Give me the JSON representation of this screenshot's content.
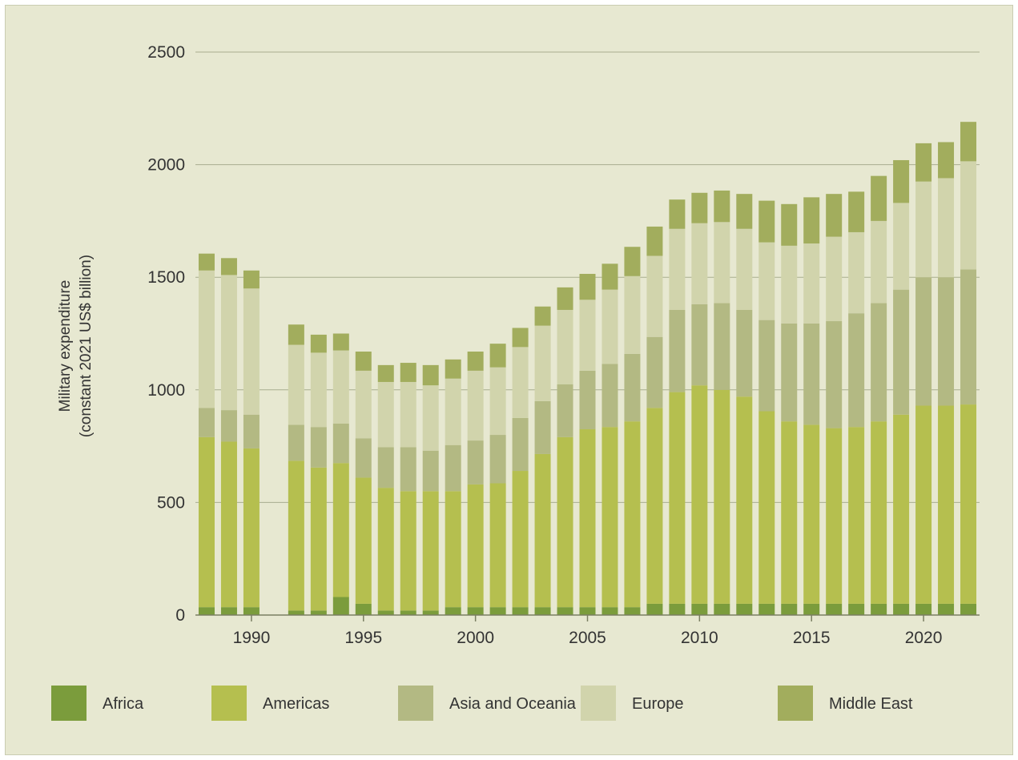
{
  "chart_data": {
    "type": "bar",
    "stacked": true,
    "title": "",
    "xlabel": "",
    "ylabel": "Military expenditure",
    "ylabel_unit": "(constant 2021 US$ billion)",
    "ylim": [
      0,
      2500
    ],
    "yticks": [
      0,
      500,
      1000,
      1500,
      2000,
      2500
    ],
    "ytick_labels": [
      "0",
      "500",
      "1000",
      "1500",
      "2000",
      "2500"
    ],
    "xlim": [
      1987.5,
      2022.5
    ],
    "xticks": [
      1990,
      1995,
      2000,
      2005,
      2010,
      2015,
      2020
    ],
    "xtick_labels": [
      "1990",
      "1995",
      "2000",
      "2005",
      "2010",
      "2015",
      "2020"
    ],
    "grid": true,
    "legend_position": "bottom",
    "categories": [
      1988,
      1989,
      1990,
      1992,
      1993,
      1994,
      1995,
      1996,
      1997,
      1998,
      1999,
      2000,
      2001,
      2002,
      2003,
      2004,
      2005,
      2006,
      2007,
      2008,
      2009,
      2010,
      2011,
      2012,
      2013,
      2014,
      2015,
      2016,
      2017,
      2018,
      2019,
      2020,
      2021,
      2022
    ],
    "series": [
      {
        "name": "Africa",
        "color": "#7b9c3c",
        "values": [
          35,
          35,
          35,
          20,
          20,
          80,
          50,
          20,
          20,
          20,
          35,
          35,
          35,
          35,
          35,
          35,
          35,
          35,
          35,
          50,
          50,
          50,
          50,
          50,
          50,
          50,
          50,
          50,
          50,
          50,
          50,
          50,
          50,
          50
        ]
      },
      {
        "name": "Americas",
        "color": "#b5bf4f",
        "values": [
          755,
          735,
          705,
          665,
          635,
          595,
          560,
          545,
          530,
          530,
          515,
          545,
          550,
          605,
          680,
          755,
          790,
          800,
          825,
          870,
          940,
          970,
          950,
          920,
          855,
          810,
          795,
          780,
          785,
          810,
          840,
          880,
          880,
          885
        ]
      },
      {
        "name": "Asia and Oceania",
        "color": "#b3b983",
        "values": [
          130,
          140,
          150,
          160,
          180,
          175,
          175,
          180,
          195,
          180,
          205,
          195,
          215,
          235,
          235,
          235,
          260,
          280,
          300,
          315,
          365,
          360,
          385,
          385,
          405,
          435,
          450,
          475,
          505,
          525,
          555,
          570,
          570,
          600
        ]
      },
      {
        "name": "Europe",
        "color": "#d1d4ac",
        "values": [
          610,
          600,
          560,
          355,
          330,
          325,
          300,
          290,
          290,
          290,
          295,
          310,
          300,
          315,
          335,
          330,
          315,
          330,
          345,
          360,
          360,
          360,
          360,
          360,
          345,
          345,
          355,
          375,
          360,
          365,
          385,
          425,
          440,
          480
        ]
      },
      {
        "name": "Middle East",
        "color": "#a2ad5d",
        "values": [
          75,
          75,
          80,
          90,
          80,
          75,
          85,
          75,
          85,
          90,
          85,
          85,
          105,
          85,
          85,
          100,
          115,
          115,
          130,
          130,
          130,
          135,
          140,
          155,
          185,
          185,
          205,
          190,
          180,
          200,
          190,
          170,
          160,
          175
        ]
      }
    ]
  }
}
